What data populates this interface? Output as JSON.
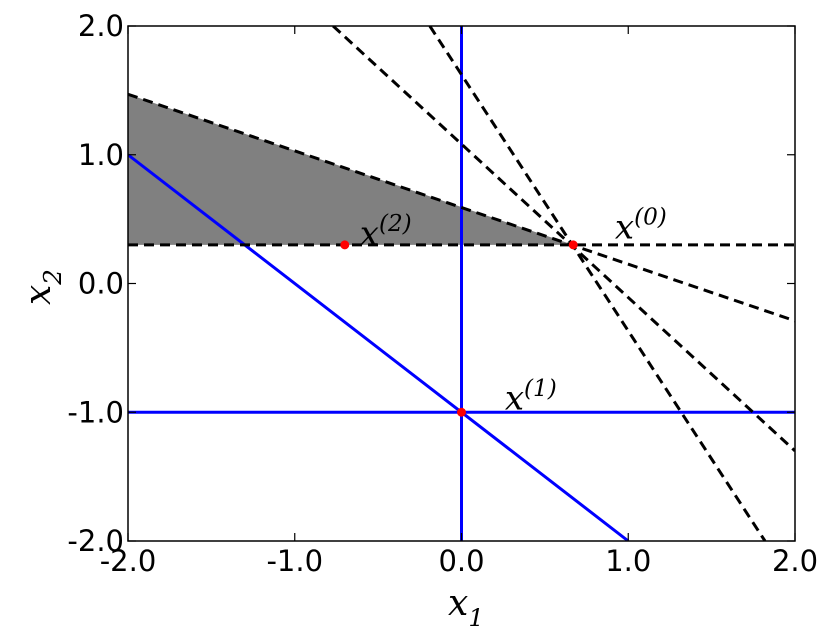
{
  "chart_data": {
    "type": "line",
    "xlabel": {
      "base": "x",
      "sub": "1"
    },
    "ylabel": {
      "base": "x",
      "sub": "2"
    },
    "xlim": [
      -2,
      2
    ],
    "ylim": [
      -2,
      2
    ],
    "xticks": [
      {
        "value": -2,
        "label": "-2.0"
      },
      {
        "value": -1,
        "label": "-1.0"
      },
      {
        "value": 0,
        "label": "0.0"
      },
      {
        "value": 1,
        "label": "1.0"
      },
      {
        "value": 2,
        "label": "2.0"
      }
    ],
    "yticks": [
      {
        "value": -2,
        "label": "-2.0"
      },
      {
        "value": -1,
        "label": "-1.0"
      },
      {
        "value": 0,
        "label": "0.0"
      },
      {
        "value": 1,
        "label": "1.0"
      },
      {
        "value": 2,
        "label": "2.0"
      }
    ],
    "regions": [
      {
        "color": "#808080",
        "x": [
          -2,
          0.67,
          -2
        ],
        "y": [
          1.47,
          0.3,
          0.3
        ]
      }
    ],
    "series": [
      {
        "color": "#0000ff",
        "dash": false,
        "x": [
          0,
          0
        ],
        "values": [
          -2,
          2
        ]
      },
      {
        "color": "#0000ff",
        "dash": false,
        "x": [
          -2,
          2
        ],
        "values": [
          -1,
          -1
        ]
      },
      {
        "color": "#0000ff",
        "dash": false,
        "x": [
          -2,
          1
        ],
        "values": [
          1,
          -2
        ]
      },
      {
        "color": "#000000",
        "dash": true,
        "x": [
          -2,
          2
        ],
        "values": [
          0.3,
          0.3
        ]
      },
      {
        "color": "#000000",
        "dash": true,
        "x": [
          -2,
          2
        ],
        "values": [
          1.47,
          -0.29
        ]
      },
      {
        "color": "#000000",
        "dash": true,
        "x": [
          -0.77,
          2
        ],
        "values": [
          2,
          -1.3
        ]
      },
      {
        "color": "#000000",
        "dash": true,
        "x": [
          -0.19,
          1.82
        ],
        "values": [
          2,
          -2
        ]
      }
    ],
    "points": {
      "color": "#ff0000",
      "x": [
        0.67,
        0,
        -0.7
      ],
      "values": [
        0.3,
        -1,
        0.3
      ]
    },
    "annotations": [
      {
        "base": "x",
        "sup": "(0)",
        "x": 0.92,
        "y": 0.35
      },
      {
        "base": "x",
        "sup": "(1)",
        "x": 0.26,
        "y": -0.98
      },
      {
        "base": "x",
        "sup": "(2)",
        "x": -0.61,
        "y": 0.3
      }
    ]
  }
}
